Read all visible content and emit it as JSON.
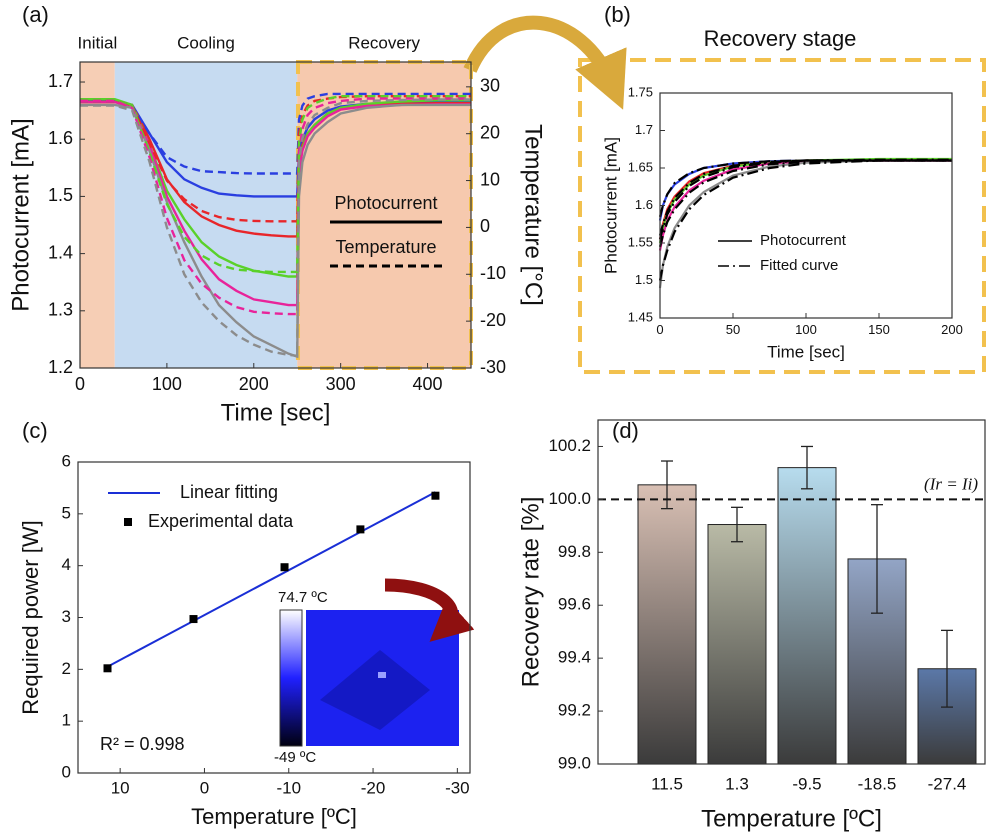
{
  "chart_data": [
    {
      "type": "line",
      "panel_label": "(a)",
      "xlabel": "Time [sec]",
      "ylabel": "Photocurrent [mA]",
      "y2label": "Temperature [°C]",
      "xlim": [
        0,
        450
      ],
      "ylim": [
        1.2,
        1.735
      ],
      "y2lim": [
        -30,
        35.3
      ],
      "xticks": [
        0,
        100,
        200,
        300,
        400
      ],
      "yticks": [
        1.2,
        1.3,
        1.4,
        1.5,
        1.6,
        1.7
      ],
      "y2ticks": [
        -30,
        -20,
        -10,
        0,
        10,
        20,
        30
      ],
      "phases": [
        {
          "label": "Initial",
          "start": 0,
          "end": 40,
          "color": "#f5c6a8"
        },
        {
          "label": "Cooling",
          "start": 40,
          "end": 250,
          "color": "#bcd5ee"
        },
        {
          "label": "Recovery",
          "start": 250,
          "end": 450,
          "color": "#f5c0a0"
        }
      ],
      "x": [
        0,
        40,
        60,
        80,
        100,
        120,
        140,
        160,
        180,
        200,
        220,
        240,
        250,
        252,
        256,
        262,
        270,
        285,
        300,
        330,
        370,
        410,
        450
      ],
      "series": [
        {
          "color": "#2a3fe0",
          "dash": "solid",
          "values": [
            1.668,
            1.668,
            1.66,
            1.61,
            1.56,
            1.53,
            1.515,
            1.505,
            1.502,
            1.5,
            1.5,
            1.5,
            1.5,
            1.58,
            1.6,
            1.62,
            1.635,
            1.65,
            1.657,
            1.662,
            1.664,
            1.665,
            1.665
          ]
        },
        {
          "color": "#e8262a",
          "dash": "solid",
          "values": [
            1.665,
            1.665,
            1.66,
            1.6,
            1.53,
            1.49,
            1.465,
            1.45,
            1.44,
            1.435,
            1.432,
            1.43,
            1.43,
            1.56,
            1.59,
            1.61,
            1.625,
            1.645,
            1.655,
            1.66,
            1.662,
            1.663,
            1.663
          ]
        },
        {
          "color": "#5ad12a",
          "dash": "solid",
          "values": [
            1.67,
            1.67,
            1.66,
            1.59,
            1.51,
            1.46,
            1.42,
            1.395,
            1.38,
            1.37,
            1.365,
            1.36,
            1.36,
            1.55,
            1.585,
            1.61,
            1.625,
            1.645,
            1.655,
            1.662,
            1.666,
            1.668,
            1.668
          ]
        },
        {
          "color": "#e8239a",
          "dash": "solid",
          "values": [
            1.665,
            1.665,
            1.655,
            1.59,
            1.5,
            1.44,
            1.39,
            1.355,
            1.335,
            1.32,
            1.315,
            1.31,
            1.31,
            1.54,
            1.58,
            1.605,
            1.62,
            1.64,
            1.652,
            1.658,
            1.66,
            1.661,
            1.661
          ]
        },
        {
          "color": "#8c8c8c",
          "dash": "solid",
          "values": [
            1.66,
            1.66,
            1.655,
            1.58,
            1.49,
            1.42,
            1.36,
            1.31,
            1.28,
            1.255,
            1.24,
            1.225,
            1.22,
            1.5,
            1.56,
            1.59,
            1.61,
            1.63,
            1.645,
            1.655,
            1.66,
            1.66,
            1.66
          ]
        },
        {
          "color": "#2a3fe0",
          "dash": "dashed",
          "axis": "y2",
          "values": [
            27,
            27,
            26,
            20,
            15,
            13,
            12,
            11.8,
            11.6,
            11.5,
            11.5,
            11.5,
            11.5,
            23,
            26,
            27.5,
            28,
            28.5,
            28.5,
            28.5,
            28.5,
            28.5,
            28.5
          ]
        },
        {
          "color": "#e8262a",
          "dash": "dashed",
          "axis": "y2",
          "values": [
            27,
            27,
            26,
            18,
            10,
            6,
            3.5,
            2.2,
            1.6,
            1.4,
            1.3,
            1.3,
            1.3,
            20,
            24,
            26,
            27,
            27.5,
            27.8,
            28,
            28,
            28,
            28
          ]
        },
        {
          "color": "#5ad12a",
          "dash": "dashed",
          "axis": "y2",
          "values": [
            27,
            27,
            26,
            16,
            5,
            -2,
            -6,
            -8,
            -9,
            -9.3,
            -9.5,
            -9.5,
            -9.5,
            18,
            23,
            25.5,
            26.5,
            27.5,
            28,
            28,
            28,
            28,
            28
          ]
        },
        {
          "color": "#e8239a",
          "dash": "dashed",
          "axis": "y2",
          "values": [
            27,
            27,
            25.5,
            15,
            2,
            -7,
            -12,
            -15,
            -17,
            -18,
            -18.3,
            -18.5,
            -18.5,
            16,
            21,
            24,
            25.5,
            26.5,
            27,
            27.5,
            27.5,
            27.5,
            27.5
          ]
        },
        {
          "color": "#8c8c8c",
          "dash": "dashed",
          "axis": "y2",
          "values": [
            26,
            26,
            25,
            14,
            0,
            -10,
            -16,
            -20,
            -23,
            -25,
            -26.5,
            -27.2,
            -27.4,
            14,
            19,
            22,
            24,
            25.5,
            26.5,
            27,
            27.2,
            27.3,
            27.3
          ]
        }
      ],
      "legend": [
        {
          "label": "Photocurrent",
          "dash": "solid"
        },
        {
          "label": "Temperature",
          "dash": "dashed"
        }
      ]
    },
    {
      "type": "line",
      "panel_label": "(b)",
      "title": "Recovery stage",
      "xlabel": "Time [sec]",
      "ylabel": "Photocurrent [mA]",
      "xlim": [
        0,
        200
      ],
      "ylim": [
        1.45,
        1.75
      ],
      "xticks": [
        0,
        50,
        100,
        150,
        200
      ],
      "yticks": [
        1.45,
        1.5,
        1.55,
        1.6,
        1.65,
        1.7,
        1.75
      ],
      "x": [
        0,
        2,
        5,
        10,
        20,
        30,
        50,
        75,
        100,
        150,
        200
      ],
      "series": [
        {
          "color": "#2a3fe0",
          "dash": "solid",
          "values": [
            1.58,
            1.6,
            1.615,
            1.628,
            1.642,
            1.65,
            1.656,
            1.659,
            1.66,
            1.66,
            1.66
          ]
        },
        {
          "color": "#e8262a",
          "dash": "solid",
          "values": [
            1.555,
            1.575,
            1.595,
            1.612,
            1.632,
            1.643,
            1.653,
            1.658,
            1.66,
            1.66,
            1.66
          ]
        },
        {
          "color": "#5ad12a",
          "dash": "solid",
          "values": [
            1.55,
            1.57,
            1.59,
            1.608,
            1.628,
            1.64,
            1.652,
            1.658,
            1.66,
            1.662,
            1.662
          ]
        },
        {
          "color": "#e8239a",
          "dash": "solid",
          "values": [
            1.54,
            1.56,
            1.58,
            1.598,
            1.62,
            1.633,
            1.648,
            1.656,
            1.659,
            1.66,
            1.66
          ]
        },
        {
          "color": "#8c8c8c",
          "dash": "solid",
          "values": [
            1.49,
            1.52,
            1.545,
            1.57,
            1.6,
            1.618,
            1.64,
            1.652,
            1.657,
            1.66,
            1.66
          ]
        },
        {
          "color": "#000000",
          "dash": "dashdot",
          "values": [
            1.585,
            1.6,
            1.615,
            1.63,
            1.643,
            1.65,
            1.656,
            1.659,
            1.66,
            1.66,
            1.66
          ]
        },
        {
          "color": "#000000",
          "dash": "dashdot",
          "values": [
            1.56,
            1.575,
            1.592,
            1.61,
            1.63,
            1.642,
            1.653,
            1.658,
            1.66,
            1.66,
            1.66
          ]
        },
        {
          "color": "#000000",
          "dash": "dashdot",
          "values": [
            1.555,
            1.57,
            1.588,
            1.605,
            1.626,
            1.638,
            1.651,
            1.657,
            1.66,
            1.661,
            1.661
          ]
        },
        {
          "color": "#000000",
          "dash": "dashdot",
          "values": [
            1.545,
            1.56,
            1.578,
            1.595,
            1.617,
            1.631,
            1.646,
            1.655,
            1.658,
            1.66,
            1.66
          ]
        },
        {
          "color": "#000000",
          "dash": "dashdot",
          "values": [
            1.5,
            1.52,
            1.54,
            1.565,
            1.595,
            1.614,
            1.637,
            1.65,
            1.656,
            1.66,
            1.66
          ]
        }
      ],
      "legend": [
        {
          "label": "Photocurrent",
          "dash": "solid"
        },
        {
          "label": "Fitted curve",
          "dash": "dashdot"
        }
      ]
    },
    {
      "type": "scatter",
      "panel_label": "(c)",
      "xlabel": "Temperature [ºC]",
      "ylabel": "Required power [W]",
      "xlim": [
        15,
        -31.5
      ],
      "ylim": [
        0,
        6
      ],
      "xticks": [
        10,
        0,
        -10,
        -20,
        -30
      ],
      "yticks": [
        0,
        1,
        2,
        3,
        4,
        5,
        6
      ],
      "series": [
        {
          "name": "Linear fitting",
          "kind": "line",
          "color": "#1a2fd6",
          "x": [
            11.5,
            -27.4
          ],
          "values": [
            2.05,
            5.42
          ]
        },
        {
          "name": "Experimental data",
          "kind": "marker",
          "color": "#000000",
          "x": [
            11.5,
            1.3,
            -9.5,
            -18.5,
            -27.4
          ],
          "values": [
            2.02,
            2.97,
            3.97,
            4.7,
            5.35
          ]
        }
      ],
      "annotation": "R² = 0.998",
      "colorbar": {
        "max_label": "74.7 ºC",
        "min_label": "-49 ºC"
      }
    },
    {
      "type": "bar",
      "panel_label": "(d)",
      "xlabel": "Temperature [ºC]",
      "ylabel": "Recovery rate [%]",
      "categories": [
        "11.5",
        "1.3",
        "-9.5",
        "-18.5",
        "-27.4"
      ],
      "values": [
        100.055,
        99.905,
        100.12,
        99.775,
        99.36
      ],
      "errors": [
        0.09,
        0.065,
        0.08,
        0.205,
        0.145
      ],
      "colors": [
        "#d9c0b4",
        "#b9baa6",
        "#b7dcee",
        "#93a5c6",
        "#5b78a8"
      ],
      "ylim": [
        99.0,
        100.3
      ],
      "yticks": [
        {
          "value": 99.0,
          "label": "99.0"
        },
        99.2,
        99.4,
        99.6,
        99.8,
        {
          "value": 100.0,
          "label": "100.0"
        },
        100.2
      ],
      "reference": {
        "value": 100.0,
        "label": "(Ir = Ii)"
      }
    }
  ]
}
